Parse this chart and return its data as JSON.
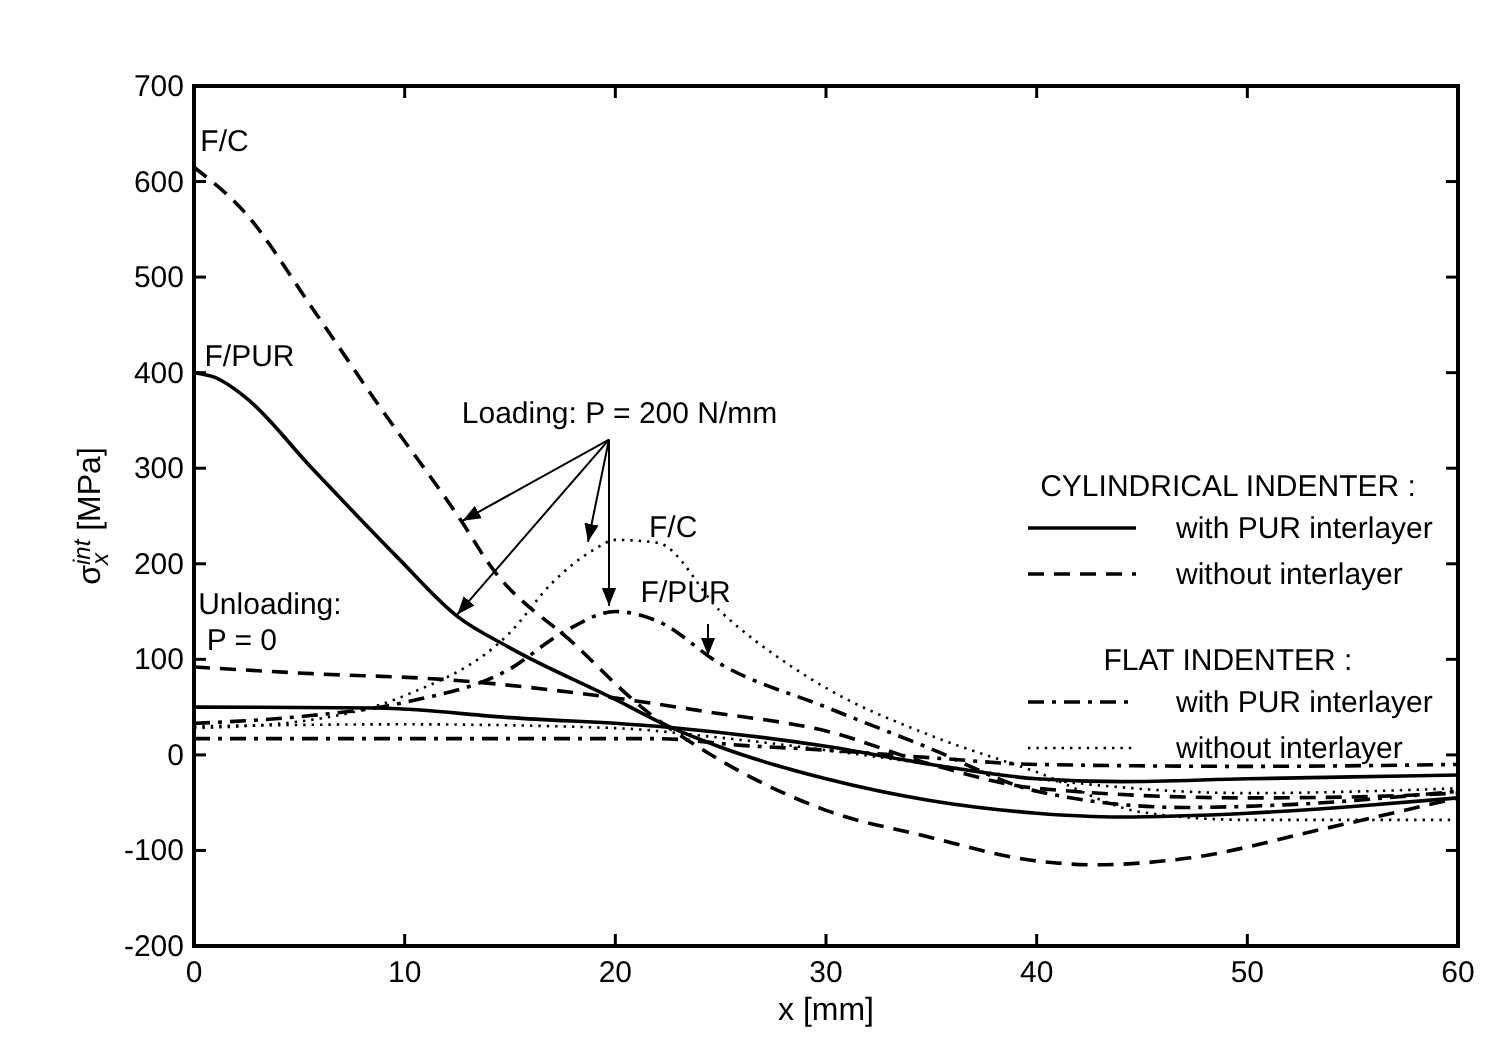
{
  "chart_data": {
    "type": "line",
    "xlabel": "x [mm]",
    "ylabel": "σ$_{x}$$^{int}$ [MPa]",
    "xlim": [
      0,
      60
    ],
    "xticks": [
      0,
      10,
      20,
      30,
      40,
      50,
      60
    ],
    "ylim": [
      -200,
      700
    ],
    "yticks": [
      -200,
      -100,
      0,
      100,
      200,
      300,
      400,
      500,
      600,
      700
    ],
    "grid": false,
    "legend": "right",
    "series": [
      {
        "name": "with PUR interlayer",
        "color": "#000000",
        "line_style": "solid",
        "x": [
          0,
          1,
          2.4,
          5.6,
          9.6,
          12.5,
          15,
          20,
          22.5,
          25,
          30,
          35,
          40,
          44,
          50,
          55,
          60
        ],
        "values": [
          400,
          395,
          375,
          300,
          208,
          145,
          112,
          58,
          30,
          8,
          -25,
          -48,
          -61,
          -65,
          -61,
          -54,
          -45
        ]
      },
      {
        "name": "without interlayer",
        "color": "#000000",
        "line_style": "dashed",
        "x": [
          0,
          2.4,
          5.6,
          8.7,
          12.8,
          14,
          18.1,
          21.3,
          24.4,
          28,
          30,
          34.7,
          40,
          42.8,
          47.2,
          53.5,
          60
        ],
        "values": [
          615,
          568,
          468,
          368,
          241,
          200,
          115,
          49,
          2,
          -40,
          -58,
          -85,
          -111,
          -115,
          -108,
          -78,
          -45
        ]
      },
      {
        "name": "with PUR interlayer",
        "color": "#000000",
        "line_style": "dashdot",
        "x": [
          0,
          5,
          10,
          15,
          17.5,
          20,
          22,
          25,
          30,
          34.7,
          40,
          47,
          52,
          60
        ],
        "values": [
          33,
          40,
          55,
          90,
          128,
          150,
          140,
          95,
          50,
          9,
          -38,
          -55,
          -52,
          -38
        ]
      },
      {
        "name": "without interlayer",
        "color": "#000000",
        "line_style": "dotted",
        "x": [
          0,
          5,
          10,
          15,
          17,
          19,
          20,
          22,
          25,
          28.4,
          30,
          35,
          40,
          45,
          50,
          60
        ],
        "values": [
          28,
          35,
          62,
          128,
          180,
          215,
          225,
          222,
          150,
          92,
          70,
          20,
          -18,
          -60,
          -68,
          -68
        ]
      },
      {
        "color": "#000000",
        "line_style": "solid",
        "x": [
          0,
          8.7,
          15,
          22.5,
          30,
          35,
          40,
          44,
          50,
          55,
          60
        ],
        "values": [
          50,
          49,
          39,
          29,
          9,
          -10,
          -25,
          -28,
          -25,
          -23,
          -21
        ]
      },
      {
        "color": "#000000",
        "line_style": "dashed",
        "x": [
          0,
          5.6,
          11.8,
          18.1,
          24.4,
          30,
          35,
          40,
          50,
          55,
          60
        ],
        "values": [
          92,
          85,
          79,
          65,
          45,
          25,
          -10,
          -35,
          -45,
          -44,
          -40
        ]
      },
      {
        "color": "#000000",
        "line_style": "dashdot",
        "x": [
          0,
          10,
          22,
          26,
          30,
          35,
          40,
          50,
          60
        ],
        "values": [
          17,
          17,
          17,
          10,
          5,
          -3,
          -10,
          -12,
          -10
        ]
      },
      {
        "color": "#000000",
        "line_style": "dotted",
        "x": [
          0,
          10,
          20,
          25,
          30,
          35,
          40,
          50,
          60
        ],
        "values": [
          30,
          32,
          28,
          18,
          5,
          -10,
          -25,
          -40,
          -35
        ]
      }
    ],
    "annotations": [
      "CYLINDRICAL INDENTER :",
      "FLAT INDENTER :",
      "F/C",
      "F/PUR",
      {
        "text": "Loading: P = 200 N/mm",
        "x": 19.7,
        "y": 152
      },
      "Unloading:",
      "P = 0",
      "F/C",
      {
        "text": "F/PUR",
        "x": 24.4,
        "y": 100
      }
    ]
  }
}
